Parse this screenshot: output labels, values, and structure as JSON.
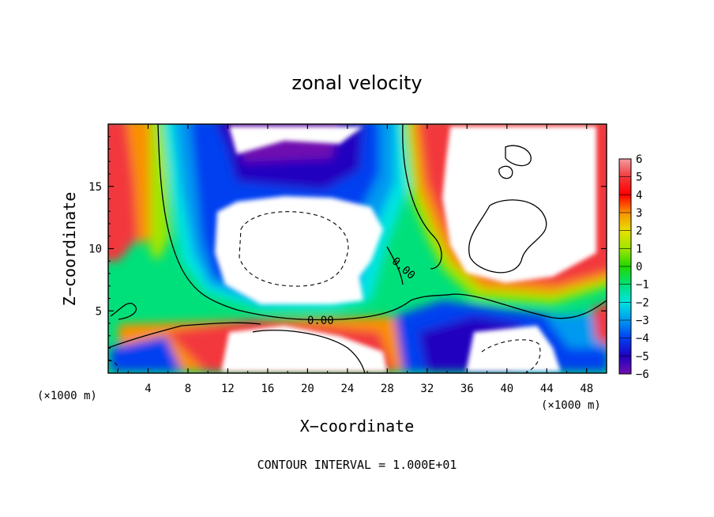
{
  "chart_data": {
    "type": "heatmap",
    "title": "zonal velocity",
    "xlabel": "X−coordinate",
    "ylabel": "Z−coordinate",
    "x_unit": "(×1000 m)",
    "z_unit": "(×1000 m)",
    "xlim": [
      0,
      50
    ],
    "ylim": [
      0,
      20
    ],
    "x_ticks": [
      4,
      8,
      12,
      16,
      20,
      24,
      28,
      32,
      36,
      40,
      44,
      48
    ],
    "y_ticks": [
      5,
      10,
      15
    ],
    "colorbar": {
      "levels": [
        6,
        5,
        4,
        3,
        2,
        1,
        0,
        -1,
        -2,
        -3,
        -4,
        -5,
        -6
      ],
      "labels": [
        "6",
        "5",
        "4",
        "3",
        "2",
        "1",
        "0",
        "−1",
        "−2",
        "−3",
        "−4",
        "−5",
        "−6"
      ]
    },
    "contour_labels": [
      {
        "text": "0.00",
        "x": 21.3,
        "z": 4.2,
        "rotate": 0
      },
      {
        "text": "0.00",
        "x": 29.6,
        "z": 8.4,
        "rotate": 42
      }
    ],
    "contour_interval_text": "CONTOUR INTERVAL = 1.000E+01",
    "colors": {
      "v_pos6": "#f49aa0",
      "v_pos5": "#f2393c",
      "v_pos4": "#fe0000",
      "v_pos3": "#fa9000",
      "v_pos2": "#e8e000",
      "v_pos1": "#a0e600",
      "v_0": "#22d800",
      "v_neg1": "#00e07a",
      "v_neg2": "#00e4e0",
      "v_neg3": "#0099f0",
      "v_neg4": "#0040f0",
      "v_neg5": "#2000c0",
      "v_neg6": "#7010b0"
    }
  }
}
